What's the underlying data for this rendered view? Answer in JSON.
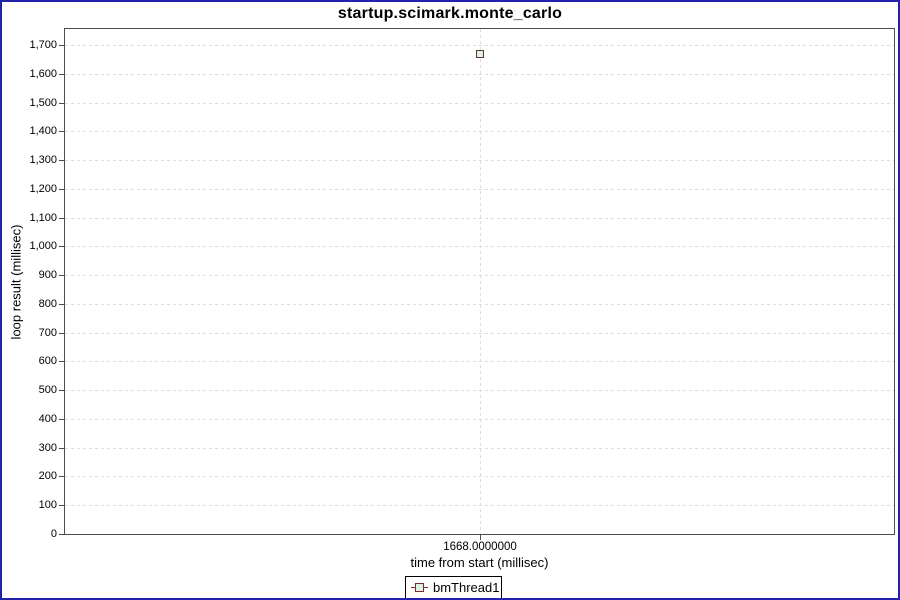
{
  "chart_data": {
    "type": "scatter",
    "title": "startup.scimark.monte_carlo",
    "xlabel": "time from start (millisec)",
    "ylabel": "loop result (millisec)",
    "x_axis": {
      "tick_labels": [
        "1668.0000000"
      ],
      "tick_values": [
        1668
      ]
    },
    "y_axis": {
      "tick_labels": [
        "0",
        "100",
        "200",
        "300",
        "400",
        "500",
        "600",
        "700",
        "800",
        "900",
        "1,000",
        "1,100",
        "1,200",
        "1,300",
        "1,400",
        "1,500",
        "1,600",
        "1,700"
      ],
      "tick_values": [
        0,
        100,
        200,
        300,
        400,
        500,
        600,
        700,
        800,
        900,
        1000,
        1100,
        1200,
        1300,
        1400,
        1500,
        1600,
        1700
      ],
      "range": [
        0,
        1760
      ]
    },
    "grid": {
      "horizontal": "dashed",
      "vertical": "dashed-at-x-tick"
    },
    "legend_position": "bottom",
    "series": [
      {
        "name": "bmThread1",
        "marker": "square-outline",
        "points": [
          {
            "x": 1668,
            "y": 1670
          }
        ]
      }
    ]
  },
  "colors": {
    "background": "#ffffff",
    "frame_border": "#2222aa",
    "plot_border": "#4d4d4d",
    "gridline": "#dcdcdc",
    "series_line": "#7a2c2c",
    "marker_outline": "#653232",
    "marker_fill": "#ddf2e4",
    "text": "#000000"
  }
}
